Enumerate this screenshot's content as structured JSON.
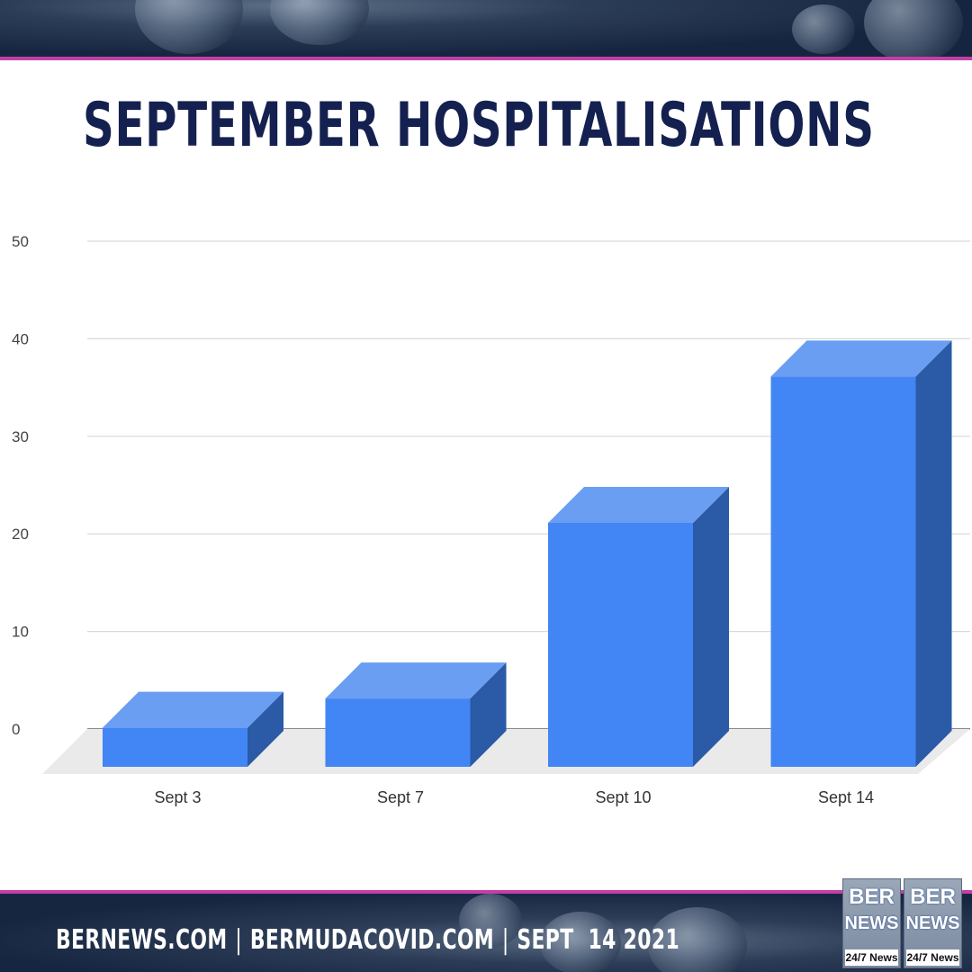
{
  "title": "SEPTEMBER HOSPITALISATIONS",
  "footer": {
    "site1": "BERNEWS.COM",
    "site2": "BERMUDACOVID.COM",
    "date": "SEPT  14 2021",
    "separator": "|"
  },
  "logo": {
    "line1": "BER",
    "line2": "NEWS",
    "tagline": "24/7 News"
  },
  "colors": {
    "title": "#14204f",
    "bar_front": "#4285f4",
    "bar_top": "#6a9ef2",
    "bar_side": "#2b5aa6",
    "accent_stripe": "#c23fa8",
    "banner": "#1e2d48"
  },
  "chart_data": {
    "type": "bar",
    "style": "3d",
    "categories": [
      "Sept 3",
      "Sept 7",
      "Sept 10",
      "Sept 14"
    ],
    "values": [
      4,
      7,
      25,
      40
    ],
    "ylim": [
      0,
      50
    ],
    "yticks": [
      0,
      10,
      20,
      30,
      40,
      50
    ],
    "title": "",
    "xlabel": "",
    "ylabel": "",
    "grid": true,
    "legend": "none"
  }
}
